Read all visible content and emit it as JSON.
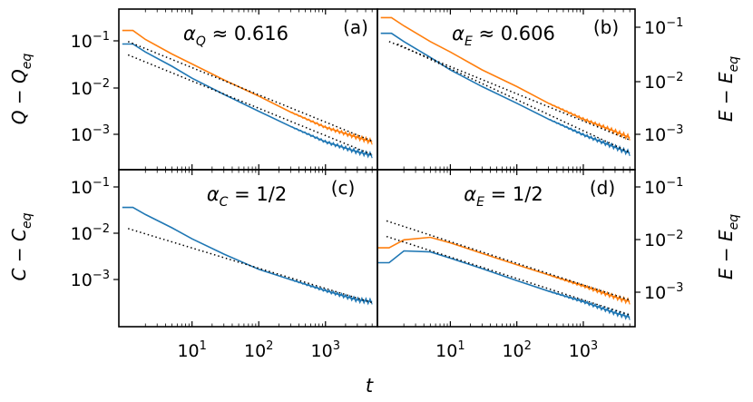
{
  "figure": {
    "x_axis_label": "t",
    "x_ticks": [
      "10|1",
      "10|2",
      "10|3"
    ]
  },
  "chart_data": [
    {
      "type": "line",
      "panel": "(a)",
      "annotation": "αQ ≈ 0.616",
      "ylabel": "Q − Qeq",
      "y_axis_side": "left",
      "xscale": "log",
      "yscale": "log",
      "xlim": [
        0.8,
        6000
      ],
      "ylim": [
        0.00012,
        0.45
      ],
      "y_ticks": [
        "10|−1",
        "10|−2",
        "10|−3"
      ],
      "series": [
        {
          "color": "#ff7f0e",
          "x": [
            0.9,
            1.3,
            2,
            5,
            10,
            30,
            100,
            300,
            1000,
            3000,
            5000
          ],
          "y": [
            0.15,
            0.15,
            0.095,
            0.045,
            0.027,
            0.012,
            0.0052,
            0.0023,
            0.00105,
            0.00063,
            0.0005
          ]
        },
        {
          "color": "#1f77b4",
          "x": [
            0.9,
            1.3,
            2,
            5,
            10,
            30,
            100,
            300,
            1000,
            3000,
            5000
          ],
          "y": [
            0.075,
            0.075,
            0.05,
            0.024,
            0.013,
            0.0057,
            0.0024,
            0.0011,
            0.0005,
            0.0003,
            0.00025
          ]
        },
        {
          "style": "dotted-fit",
          "color": "#000000",
          "x": [
            1.1,
            5000
          ],
          "y": [
            0.085,
            0.00052
          ]
        },
        {
          "style": "dotted-fit",
          "color": "#000000",
          "x": [
            1.1,
            5000
          ],
          "y": [
            0.043,
            0.00026
          ]
        }
      ]
    },
    {
      "type": "line",
      "panel": "(b)",
      "annotation": "αE ≈ 0.606",
      "ylabel": "E − Eeq",
      "y_axis_side": "right",
      "xscale": "log",
      "yscale": "log",
      "xlim": [
        0.8,
        6000
      ],
      "ylim": [
        0.00012,
        0.45
      ],
      "y_ticks": [
        "10|−1",
        "10|−2",
        "10|−3"
      ],
      "series": [
        {
          "color": "#ff7f0e",
          "x": [
            0.9,
            1.3,
            2,
            5,
            10,
            30,
            100,
            300,
            1000,
            3000,
            5000
          ],
          "y": [
            0.29,
            0.29,
            0.19,
            0.085,
            0.05,
            0.02,
            0.0085,
            0.0036,
            0.0016,
            0.00085,
            0.00062
          ]
        },
        {
          "color": "#1f77b4",
          "x": [
            0.9,
            1.3,
            2,
            5,
            10,
            30,
            100,
            300,
            1000,
            3000,
            5000
          ],
          "y": [
            0.13,
            0.13,
            0.085,
            0.038,
            0.02,
            0.0085,
            0.0036,
            0.0016,
            0.00072,
            0.00038,
            0.00028
          ]
        },
        {
          "style": "dotted-fit",
          "color": "#000000",
          "x": [
            1.2,
            5000
          ],
          "y": [
            0.085,
            0.00055
          ]
        },
        {
          "style": "dotted-fit",
          "color": "#000000",
          "x": [
            1.6,
            5000
          ],
          "y": [
            0.075,
            0.00029
          ]
        }
      ]
    },
    {
      "type": "line",
      "panel": "(c)",
      "annotation": "αC = 1/2",
      "ylabel": "C − Ceq",
      "y_axis_side": "left",
      "xscale": "log",
      "yscale": "log",
      "xlim": [
        0.8,
        6000
      ],
      "ylim": [
        5e-05,
        0.3
      ],
      "y_ticks": [
        "10|−1",
        "10|−2",
        "10|−3"
      ],
      "series": [
        {
          "color": "#1f77b4",
          "x": [
            0.9,
            1.3,
            2,
            5,
            10,
            30,
            100,
            300,
            1000,
            3000,
            5000
          ],
          "y": [
            0.037,
            0.037,
            0.025,
            0.012,
            0.0065,
            0.0028,
            0.0012,
            0.00068,
            0.00037,
            0.00022,
            0.0002
          ]
        },
        {
          "style": "dotted-fit",
          "color": "#000000",
          "x": [
            1.1,
            5000
          ],
          "y": [
            0.0115,
            0.00019
          ]
        }
      ]
    },
    {
      "type": "line",
      "panel": "(d)",
      "annotation": "αE = 1/2",
      "ylabel": "E − Eeq",
      "y_axis_side": "right",
      "xscale": "log",
      "yscale": "log",
      "xlim": [
        0.8,
        6000
      ],
      "ylim": [
        9e-05,
        0.45
      ],
      "y_ticks": [
        "10|−1",
        "10|−2",
        "10|−3"
      ],
      "series": [
        {
          "color": "#ff7f0e",
          "x": [
            0.8,
            1.2,
            2,
            5,
            10,
            30,
            100,
            300,
            1000,
            3000,
            5000
          ],
          "y": [
            0.0065,
            0.0065,
            0.01,
            0.0115,
            0.0085,
            0.0048,
            0.0026,
            0.0015,
            0.00082,
            0.00045,
            0.00035
          ]
        },
        {
          "color": "#1f77b4",
          "x": [
            0.8,
            1.2,
            2,
            5,
            10,
            30,
            100,
            300,
            1000,
            3000,
            5000
          ],
          "y": [
            0.0029,
            0.0029,
            0.0055,
            0.0052,
            0.0037,
            0.0021,
            0.0011,
            0.00062,
            0.00035,
            0.00019,
            0.00015
          ]
        },
        {
          "style": "dotted-fit",
          "color": "#000000",
          "x": [
            1.1,
            5000
          ],
          "y": [
            0.028,
            0.00038
          ]
        },
        {
          "style": "dotted-fit",
          "color": "#000000",
          "x": [
            1.1,
            5000
          ],
          "y": [
            0.012,
            0.00017
          ]
        }
      ]
    }
  ]
}
